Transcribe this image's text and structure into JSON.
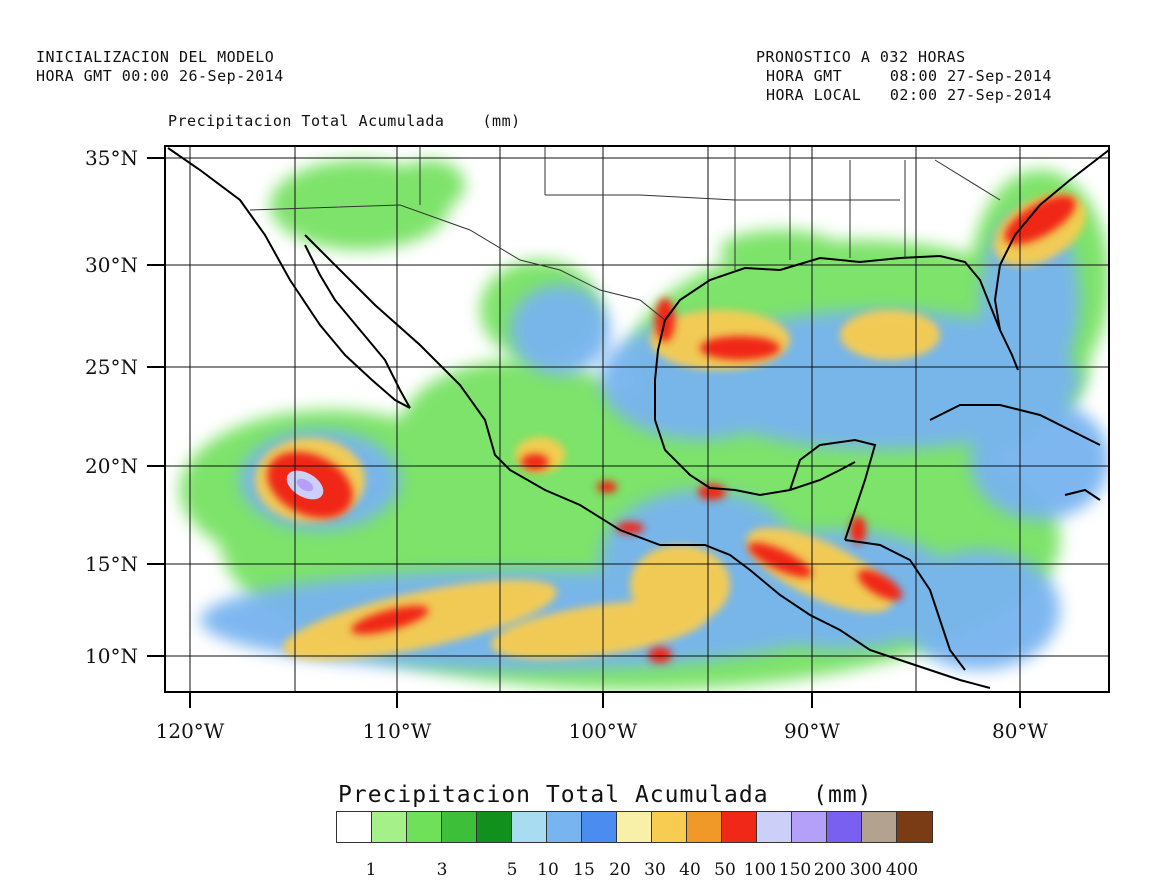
{
  "header": {
    "init_line1": "INICIALIZACION DEL MODELO",
    "init_line2": "HORA GMT 00:00 26-Sep-2014",
    "fcst_line1": "PRONOSTICO A 032 HORAS",
    "fcst_line2": "HORA GMT     08:00 27-Sep-2014",
    "fcst_line3": "HORA LOCAL   02:00 27-Sep-2014"
  },
  "map_title": "Precipitacion Total Acumulada    (mm)",
  "axes": {
    "lat_labels": [
      "35°N",
      "30°N",
      "25°N",
      "20°N",
      "15°N",
      "10°N"
    ],
    "lon_labels": [
      "120°W",
      "110°W",
      "100°W",
      "90°W",
      "80°W"
    ]
  },
  "legend": {
    "title": "Precipitacion Total Acumulada   (mm)",
    "colors": [
      "#ffffff",
      "#a6f08a",
      "#6fe05a",
      "#3dbf3a",
      "#12901e",
      "#a8dcf0",
      "#78b4f0",
      "#4a8cf0",
      "#f8f0a8",
      "#f8cc50",
      "#f09828",
      "#f02818",
      "#cccff8",
      "#b4a0f8",
      "#7a60f0",
      "#b4a290",
      "#7a3c14"
    ],
    "labels": [
      "1",
      "3",
      "5",
      "10",
      "15",
      "20",
      "30",
      "40",
      "50",
      "100",
      "150",
      "200",
      "300",
      "400"
    ]
  }
}
